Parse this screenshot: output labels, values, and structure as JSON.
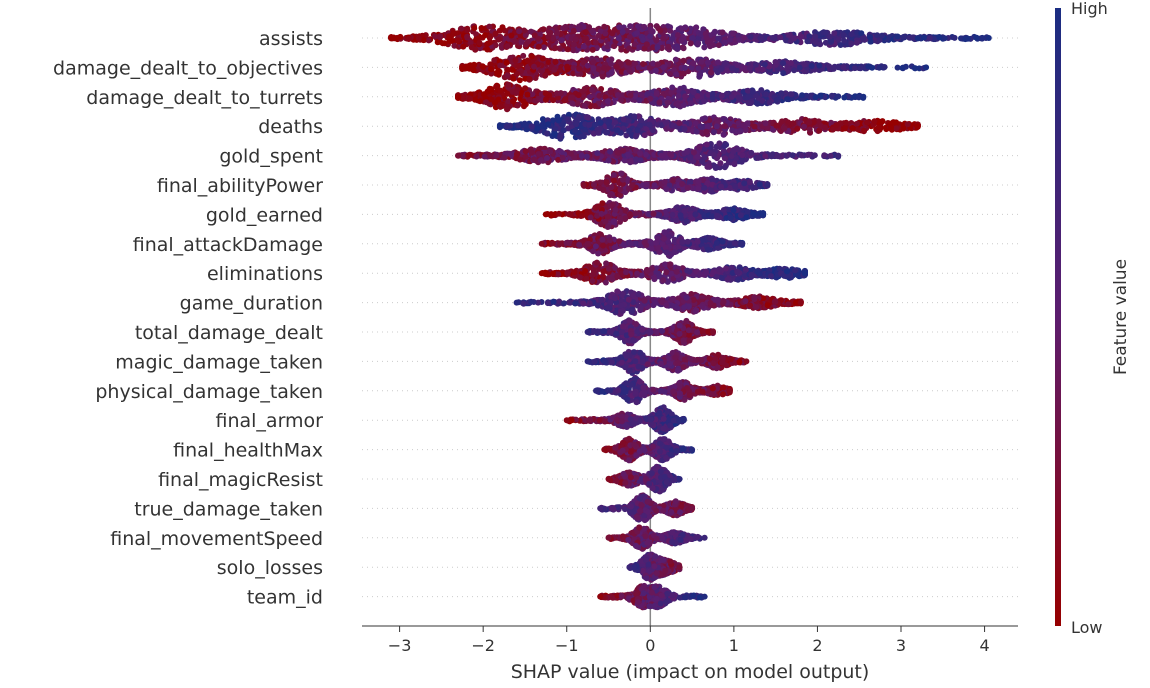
{
  "chart_data": {
    "type": "scatter",
    "subtype": "shap-beeswarm",
    "xlabel": "SHAP value (impact on model output)",
    "xlim": [
      -3.45,
      4.4
    ],
    "xticks": [
      -3,
      -2,
      -1,
      0,
      1,
      2,
      3,
      4
    ],
    "colorbar": {
      "title": "Feature value",
      "high_label": "High",
      "low_label": "Low",
      "high_color": "#1a2d82",
      "low_color": "#960000"
    },
    "zero_line": 0,
    "features": [
      {
        "name": "assists",
        "min": -3.1,
        "max": 4.05,
        "lobes": [
          [
            -2.0,
            11
          ],
          [
            -1.0,
            9
          ],
          [
            -0.3,
            12
          ],
          [
            0.5,
            9
          ],
          [
            2.2,
            6
          ]
        ],
        "trend": 1
      },
      {
        "name": "damage_dealt_to_objectives",
        "min": -2.25,
        "max": 3.3,
        "lobes": [
          [
            -1.55,
            12
          ],
          [
            -0.6,
            8
          ],
          [
            0.5,
            9
          ],
          [
            1.6,
            5
          ]
        ],
        "trend": 1
      },
      {
        "name": "damage_dealt_to_turrets",
        "min": -2.3,
        "max": 2.55,
        "lobes": [
          [
            -1.7,
            12
          ],
          [
            -0.7,
            9
          ],
          [
            0.3,
            9
          ],
          [
            1.3,
            6
          ]
        ],
        "trend": 1
      },
      {
        "name": "deaths",
        "min": -1.8,
        "max": 3.2,
        "lobes": [
          [
            -1.0,
            12
          ],
          [
            -0.2,
            9
          ],
          [
            0.8,
            8
          ],
          [
            1.8,
            6
          ],
          [
            2.7,
            5
          ]
        ],
        "trend": -1
      },
      {
        "name": "gold_spent",
        "min": -2.3,
        "max": 2.25,
        "lobes": [
          [
            -1.3,
            6
          ],
          [
            -0.3,
            6
          ],
          [
            0.8,
            12
          ]
        ],
        "trend": 0.5
      },
      {
        "name": "final_abilityPower",
        "min": -0.8,
        "max": 1.4,
        "lobes": [
          [
            -0.4,
            12
          ],
          [
            0.3,
            5
          ],
          [
            0.7,
            6
          ],
          [
            1.1,
            4
          ]
        ],
        "trend": 0.6
      },
      {
        "name": "gold_earned",
        "min": -1.25,
        "max": 1.35,
        "lobes": [
          [
            -0.5,
            12
          ],
          [
            0.4,
            7
          ],
          [
            1.0,
            5
          ]
        ],
        "trend": 1
      },
      {
        "name": "final_attackDamage",
        "min": -1.3,
        "max": 1.1,
        "lobes": [
          [
            -0.6,
            9
          ],
          [
            0.2,
            12
          ],
          [
            0.7,
            5
          ]
        ],
        "trend": 0.7
      },
      {
        "name": "eliminations",
        "min": -1.3,
        "max": 1.85,
        "lobes": [
          [
            -0.6,
            10
          ],
          [
            0.2,
            8
          ],
          [
            1.0,
            6
          ],
          [
            1.6,
            4
          ]
        ],
        "trend": 1
      },
      {
        "name": "game_duration",
        "min": -1.6,
        "max": 1.8,
        "lobes": [
          [
            -0.3,
            12
          ],
          [
            0.5,
            8
          ],
          [
            1.3,
            5
          ]
        ],
        "trend": -0.8
      },
      {
        "name": "total_damage_dealt",
        "min": -0.75,
        "max": 0.75,
        "lobes": [
          [
            -0.25,
            11
          ],
          [
            0.4,
            11
          ]
        ],
        "trend": -0.6
      },
      {
        "name": "magic_damage_taken",
        "min": -0.75,
        "max": 1.15,
        "lobes": [
          [
            -0.2,
            11
          ],
          [
            0.3,
            9
          ],
          [
            0.8,
            6
          ]
        ],
        "trend": -0.7
      },
      {
        "name": "physical_damage_taken",
        "min": -0.65,
        "max": 0.95,
        "lobes": [
          [
            -0.2,
            12
          ],
          [
            0.4,
            8
          ],
          [
            0.8,
            4
          ]
        ],
        "trend": -0.7
      },
      {
        "name": "final_armor",
        "min": -1.0,
        "max": 0.4,
        "lobes": [
          [
            -0.3,
            6
          ],
          [
            0.15,
            12
          ]
        ],
        "trend": 0.8
      },
      {
        "name": "final_healthMax",
        "min": -0.55,
        "max": 0.5,
        "lobes": [
          [
            -0.25,
            10
          ],
          [
            0.15,
            10
          ]
        ],
        "trend": 0.8
      },
      {
        "name": "final_magicResist",
        "min": -0.5,
        "max": 0.35,
        "lobes": [
          [
            -0.25,
            6
          ],
          [
            0.1,
            12
          ]
        ],
        "trend": 0.7
      },
      {
        "name": "true_damage_taken",
        "min": -0.6,
        "max": 0.5,
        "lobes": [
          [
            -0.1,
            12
          ],
          [
            0.3,
            6
          ]
        ],
        "trend": -0.4
      },
      {
        "name": "final_movementSpeed",
        "min": -0.5,
        "max": 0.65,
        "lobes": [
          [
            -0.1,
            10
          ],
          [
            0.3,
            5
          ]
        ],
        "trend": 0.5
      },
      {
        "name": "solo_losses",
        "min": -0.25,
        "max": 0.35,
        "lobes": [
          [
            0.0,
            12
          ],
          [
            0.2,
            5
          ]
        ],
        "trend": -0.5
      },
      {
        "name": "team_id",
        "min": -0.6,
        "max": 0.65,
        "lobes": [
          [
            -0.1,
            9
          ],
          [
            0.1,
            9
          ]
        ],
        "trend": 0.9
      }
    ]
  }
}
